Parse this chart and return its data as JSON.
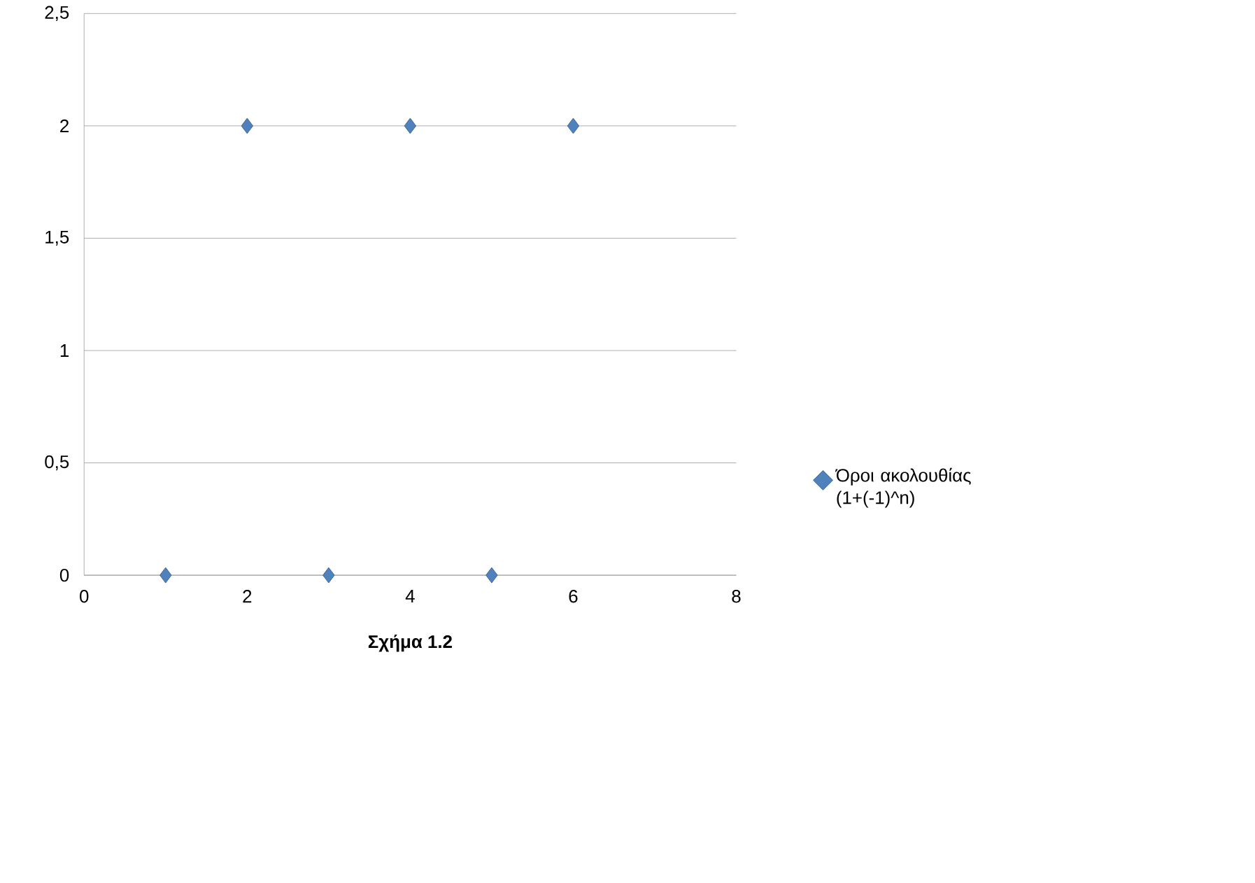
{
  "chart_data": {
    "type": "scatter",
    "xlabel": "Σχήμα 1.2",
    "series": [
      {
        "name": "Όροι ακολουθίας (1+(-1)^n)",
        "color": "#4f81bd",
        "x": [
          1,
          2,
          3,
          4,
          5,
          6
        ],
        "values": [
          0,
          2,
          0,
          2,
          0,
          2
        ]
      }
    ],
    "xlim": [
      0,
      8
    ],
    "xticks": [
      0,
      2,
      4,
      6,
      8
    ],
    "ylim": [
      0,
      2.5
    ],
    "yticks": [
      0,
      {
        "value": 0.5,
        "label": "0,5"
      },
      1,
      {
        "value": 1.5,
        "label": "1,5"
      },
      2,
      {
        "value": 2.5,
        "label": "2,5"
      }
    ],
    "grid": "y",
    "legend": "right",
    "marker": "diamond"
  }
}
